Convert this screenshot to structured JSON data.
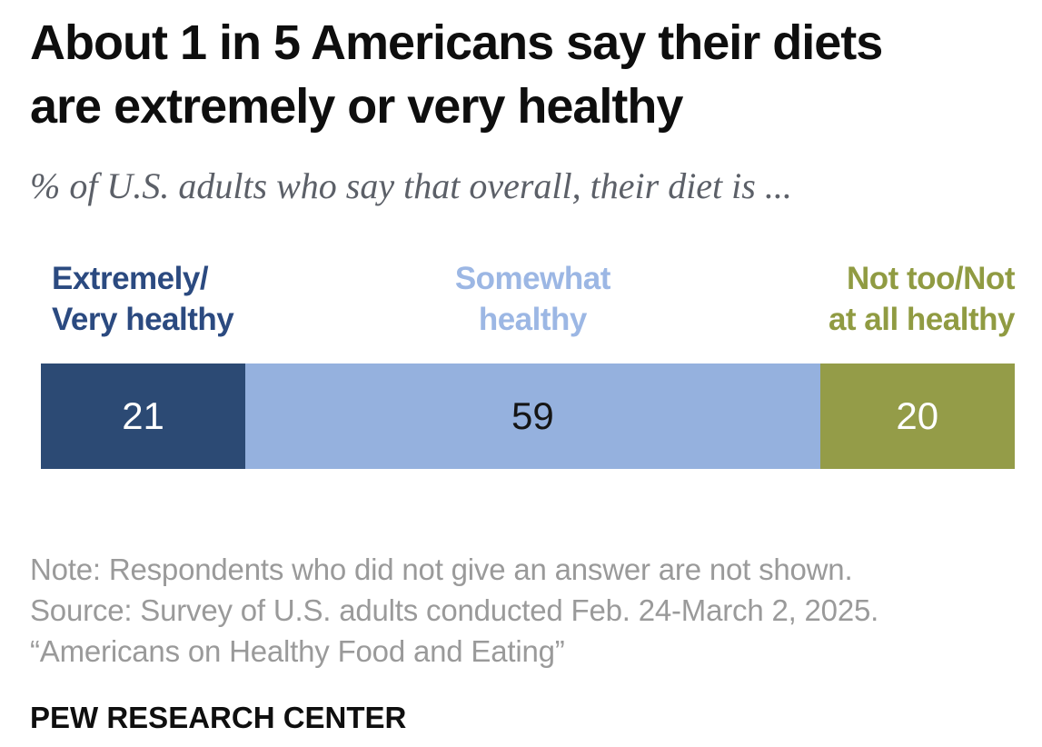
{
  "header": {
    "title": "About 1 in 5 Americans say their diets\nare extremely or very healthy",
    "subtitle": "% of U.S. adults who say that overall, their diet is ..."
  },
  "chart_data": {
    "type": "bar",
    "stacked": true,
    "orientation": "horizontal",
    "title": "About 1 in 5 Americans say their diets are extremely or very healthy",
    "subtitle": "% of U.S. adults who say that overall, their diet is ...",
    "units": "%",
    "categories": [
      "Extremely/Very healthy",
      "Somewhat healthy",
      "Not too/Not at all healthy"
    ],
    "values": [
      21,
      59,
      20
    ],
    "total": 100,
    "segment_colors": [
      "#2c4a74",
      "#95b1de",
      "#949c48"
    ],
    "value_label_colors": [
      "#ffffff",
      "#151515",
      "#ffffff"
    ],
    "legend": [
      {
        "label": "Extremely/\nVery healthy",
        "color": "#2b4a80",
        "align": "left"
      },
      {
        "label": "Somewhat\nhealthy",
        "color": "#9cb7e4",
        "align": "center"
      },
      {
        "label": "Not too/Not\nat all healthy",
        "color": "#909b42",
        "align": "right"
      }
    ],
    "legend_position": "top",
    "grid": false,
    "axis_labels_shown": false
  },
  "notes": {
    "note": "Note: Respondents who did not give an answer are not shown.",
    "source": "Source: Survey of U.S. adults conducted Feb. 24-March 2, 2025.",
    "report": "“Americans on Healthy Food and Eating”"
  },
  "footer": {
    "brand": "PEW RESEARCH CENTER"
  }
}
